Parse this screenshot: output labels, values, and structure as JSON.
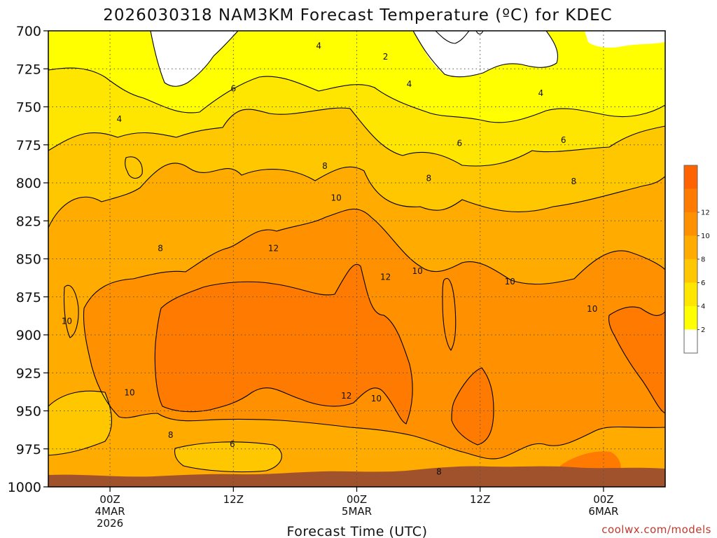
{
  "chart_data": {
    "type": "heatmap",
    "title": "2026030318 NAM3KM Forecast Temperature (ºC) for KDEC",
    "xlabel": "Forecast Time (UTC)",
    "ylabel": "",
    "y_axis": {
      "ticks": [
        "700",
        "725",
        "750",
        "775",
        "800",
        "825",
        "850",
        "875",
        "900",
        "925",
        "950",
        "975",
        "1000"
      ],
      "values": [
        700,
        725,
        750,
        775,
        800,
        825,
        850,
        875,
        900,
        925,
        950,
        975,
        1000
      ],
      "range": [
        700,
        1000
      ]
    },
    "x_axis": {
      "range_hours": [
        -6,
        54
      ],
      "ticks": [
        {
          "hour": 0,
          "lines": [
            "00Z",
            "4MAR",
            "2026"
          ]
        },
        {
          "hour": 12,
          "lines": [
            "12Z"
          ]
        },
        {
          "hour": 24,
          "lines": [
            "00Z",
            "5MAR"
          ]
        },
        {
          "hour": 36,
          "lines": [
            "12Z"
          ]
        },
        {
          "hour": 48,
          "lines": [
            "00Z",
            "6MAR"
          ]
        }
      ]
    },
    "colorbar": {
      "labels": [
        "2",
        "4",
        "6",
        "8",
        "10",
        "12"
      ],
      "levels": [
        2,
        4,
        6,
        8,
        10,
        12
      ],
      "colors": [
        "#ffffff",
        "#ffff00",
        "#ffe600",
        "#ffc700",
        "#ffab00",
        "#ff9100",
        "#ff7a00",
        "#ff6200"
      ]
    },
    "contour_labels": [
      {
        "text": "4",
        "hour": 20.3,
        "hpa": 710
      },
      {
        "text": "2",
        "hour": 26.8,
        "hpa": 717
      },
      {
        "text": "6",
        "hour": 12.0,
        "hpa": 738
      },
      {
        "text": "4",
        "hour": 29.1,
        "hpa": 735
      },
      {
        "text": "4",
        "hour": 41.9,
        "hpa": 741
      },
      {
        "text": "4",
        "hour": 0.9,
        "hpa": 758
      },
      {
        "text": "6",
        "hour": 34.0,
        "hpa": 774
      },
      {
        "text": "6",
        "hour": 44.1,
        "hpa": 772
      },
      {
        "text": "8",
        "hour": 20.9,
        "hpa": 789
      },
      {
        "text": "8",
        "hour": 31.0,
        "hpa": 797
      },
      {
        "text": "8",
        "hour": 45.1,
        "hpa": 799
      },
      {
        "text": "10",
        "hour": 22.0,
        "hpa": 810
      },
      {
        "text": "8",
        "hour": 4.9,
        "hpa": 843
      },
      {
        "text": "12",
        "hour": 15.9,
        "hpa": 843
      },
      {
        "text": "12",
        "hour": 26.8,
        "hpa": 862
      },
      {
        "text": "10",
        "hour": 29.9,
        "hpa": 858
      },
      {
        "text": "10",
        "hour": 38.9,
        "hpa": 865
      },
      {
        "text": "10",
        "hour": 46.9,
        "hpa": 883
      },
      {
        "text": "10",
        "hour": -4.2,
        "hpa": 891
      },
      {
        "text": "10",
        "hour": 1.9,
        "hpa": 938
      },
      {
        "text": "12",
        "hour": 23.0,
        "hpa": 940
      },
      {
        "text": "10",
        "hour": 25.9,
        "hpa": 942
      },
      {
        "text": "8",
        "hour": 5.9,
        "hpa": 966
      },
      {
        "text": "6",
        "hour": 11.9,
        "hpa": 972
      },
      {
        "text": "8",
        "hour": 32.0,
        "hpa": 990
      }
    ],
    "surface": "brown terrain band near 1000 hPa"
  },
  "watermark": "coolwx.com/models"
}
